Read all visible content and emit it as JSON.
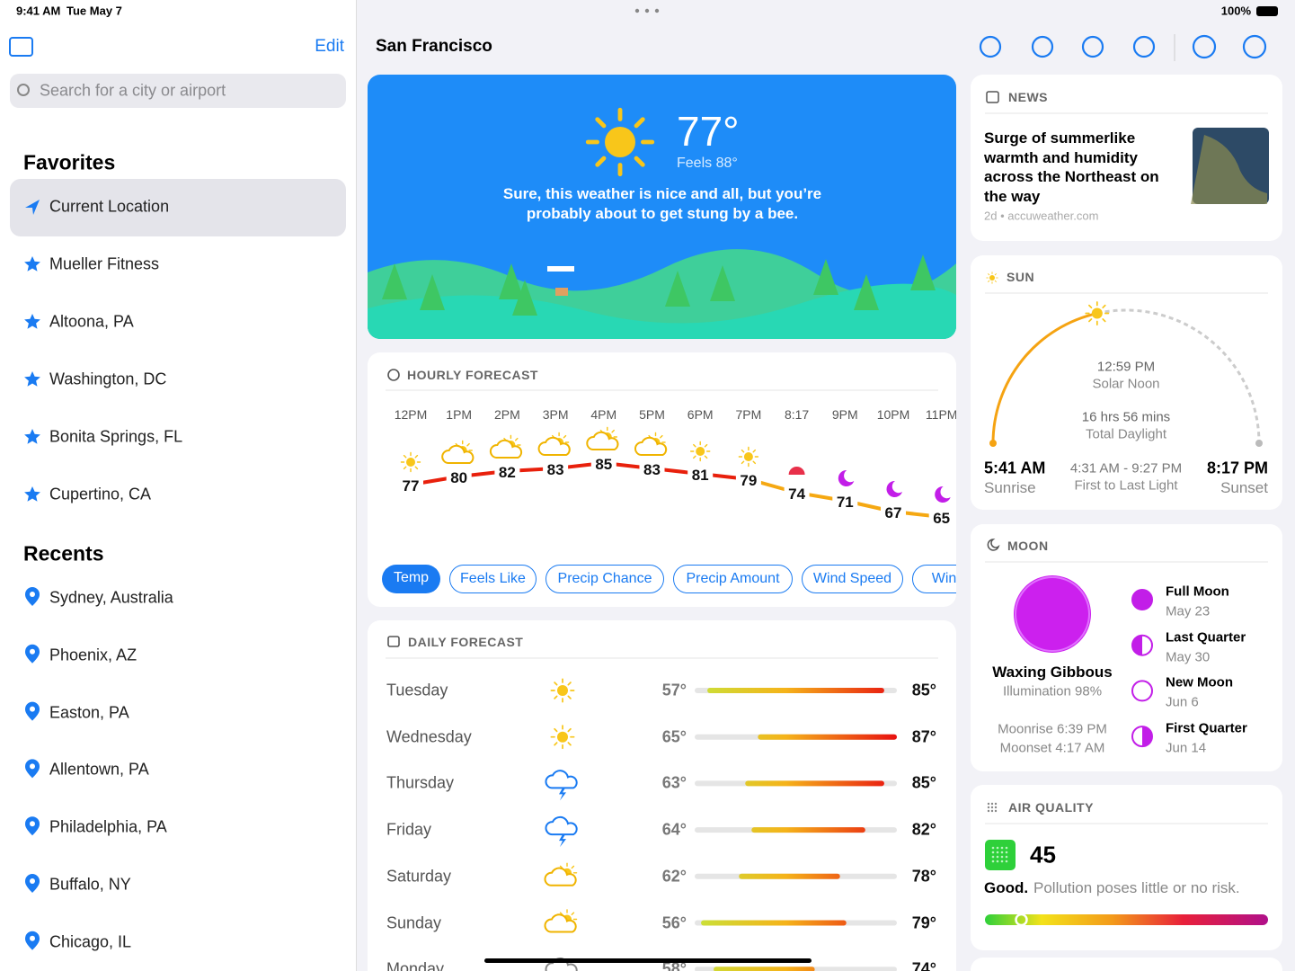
{
  "status": {
    "time": "9:41 AM",
    "date": "Tue May 7",
    "battery": "100%"
  },
  "sidebar": {
    "edit": "Edit",
    "search": "Search for a city or airport",
    "favorites_title": "Favorites",
    "favorites": [
      "Current Location",
      "Mueller Fitness",
      "Altoona, PA",
      "Washington, DC",
      "Bonita Springs, FL",
      "Cupertino, CA"
    ],
    "recents_title": "Recents",
    "recents": [
      "Sydney, Australia",
      "Phoenix, AZ",
      "Easton, PA",
      "Allentown, PA",
      "Philadelphia, PA",
      "Buffalo, NY",
      "Chicago, IL"
    ]
  },
  "header": {
    "city": "San Francisco"
  },
  "hero": {
    "temp": "77°",
    "feels": "Feels 88°",
    "message": "Sure, this weather is nice and all, but you’re probably about to get stung by a bee."
  },
  "hourly": {
    "title": "HOURLY FORECAST",
    "times": [
      "12PM",
      "1PM",
      "2PM",
      "3PM",
      "4PM",
      "5PM",
      "6PM",
      "7PM",
      "8:17",
      "9PM",
      "10PM",
      "11PM"
    ],
    "temps": [
      77,
      80,
      82,
      83,
      85,
      83,
      81,
      79,
      74,
      71,
      67,
      65
    ],
    "tabs": [
      "Temp",
      "Feels Like",
      "Precip Chance",
      "Precip Amount",
      "Wind Speed",
      "Wind"
    ]
  },
  "daily": {
    "title": "DAILY FORECAST",
    "days": [
      {
        "name": "Tuesday",
        "low": 57,
        "low_label": "57°",
        "high": 85,
        "high_label": "85°"
      },
      {
        "name": "Wednesday",
        "low": 65,
        "low_label": "65°",
        "high": 87,
        "high_label": "87°"
      },
      {
        "name": "Thursday",
        "low": 63,
        "low_label": "63°",
        "high": 85,
        "high_label": "85°"
      },
      {
        "name": "Friday",
        "low": 64,
        "low_label": "64°",
        "high": 82,
        "high_label": "82°"
      },
      {
        "name": "Saturday",
        "low": 62,
        "low_label": "62°",
        "high": 78,
        "high_label": "78°"
      },
      {
        "name": "Sunday",
        "low": 56,
        "low_label": "56°",
        "high": 79,
        "high_label": "79°"
      },
      {
        "name": "Monday",
        "low": 58,
        "low_label": "58°",
        "high": 74,
        "high_label": "74°"
      }
    ]
  },
  "news": {
    "title": "NEWS",
    "headline": "Surge of summerlike warmth and humidity across the Northeast on the way",
    "meta": "2d • accuweather.com"
  },
  "sun": {
    "title": "SUN",
    "noon": "12:59 PM",
    "noon_label": "Solar Noon",
    "daylight": "16 hrs 56 mins",
    "daylight_label": "Total Daylight",
    "sunrise": "5:41 AM",
    "sunrise_label": "Sunrise",
    "light": "4:31 AM - 9:27 PM",
    "light_label": "First to Last Light",
    "sunset": "8:17 PM",
    "sunset_label": "Sunset"
  },
  "moon": {
    "title": "MOON",
    "phase": "Waxing Gibbous",
    "illumination": "Illumination 98%",
    "moonrise": "Moonrise 6:39 PM",
    "moonset": "Moonset 4:17 AM",
    "phases": [
      {
        "name": "Full Moon",
        "date": "May 23"
      },
      {
        "name": "Last Quarter",
        "date": "May 30"
      },
      {
        "name": "New Moon",
        "date": "Jun 6"
      },
      {
        "name": "First Quarter",
        "date": "Jun 14"
      }
    ]
  },
  "air_quality": {
    "title": "AIR QUALITY",
    "index": 45,
    "rating": "Good.",
    "description": "Pollution poses little or no risk."
  }
}
